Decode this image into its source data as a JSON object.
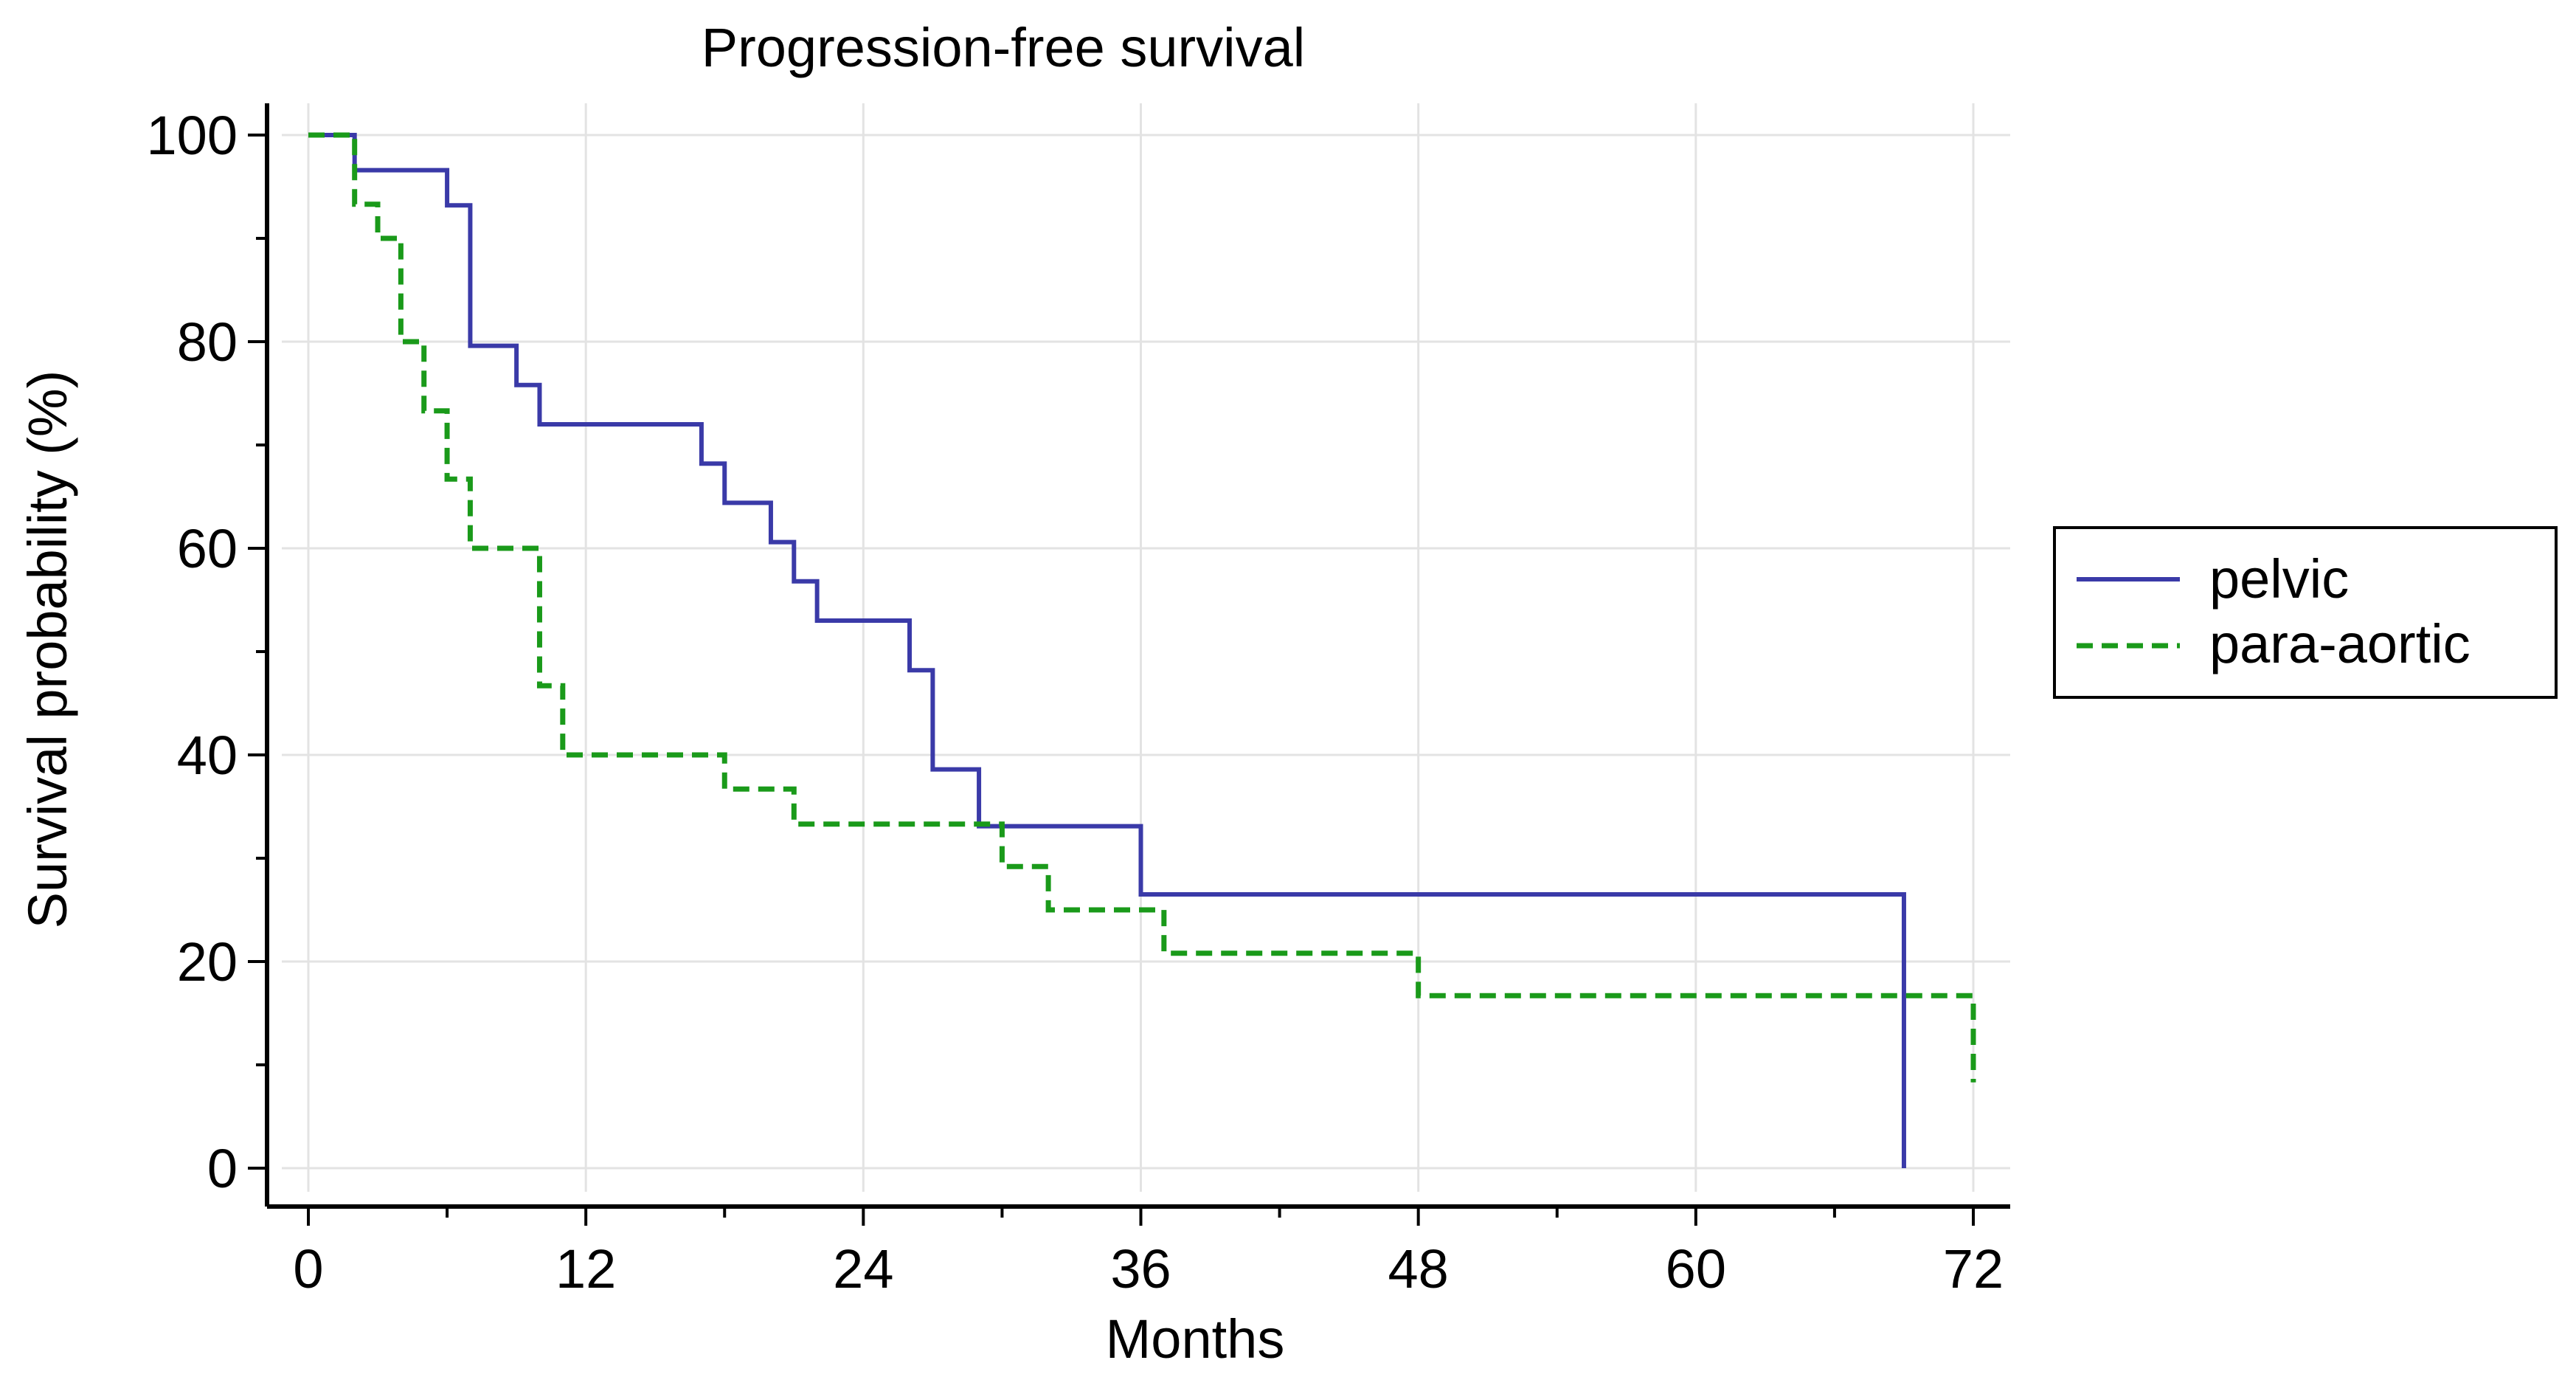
{
  "chart_data": {
    "type": "line",
    "step": true,
    "title": "Progression-free survival",
    "xlabel": "Months",
    "ylabel": "Survival probability (%)",
    "xlim": [
      0,
      72
    ],
    "ylim": [
      0,
      100
    ],
    "xticks": [
      0,
      12,
      24,
      36,
      48,
      60,
      72
    ],
    "yticks": [
      0,
      20,
      40,
      60,
      80,
      100
    ],
    "xtick_labels": [
      "0",
      "12",
      "24",
      "36",
      "48",
      "60",
      "72"
    ],
    "ytick_labels": [
      "0",
      "20",
      "40",
      "60",
      "80",
      "100"
    ],
    "grid": true,
    "legend_position": "right",
    "series": [
      {
        "name": "pelvic",
        "color": "#3a3aa8",
        "dash": "solid",
        "x": [
          0,
          2,
          6,
          7,
          9,
          10,
          17,
          18,
          20,
          21,
          22,
          26,
          27,
          29,
          36,
          69,
          69
        ],
        "y": [
          100,
          96.6,
          93.2,
          79.6,
          75.8,
          72.0,
          68.2,
          64.4,
          60.6,
          56.8,
          53.0,
          48.2,
          38.6,
          33.1,
          26.5,
          26.5,
          0
        ]
      },
      {
        "name": "para-aortic",
        "color": "#1a9a1a",
        "dash": "dashed",
        "x": [
          0,
          2,
          3,
          4,
          5,
          6,
          7,
          10,
          11,
          18,
          21,
          30,
          32,
          37,
          48,
          72,
          72
        ],
        "y": [
          100,
          93.3,
          90.0,
          80.0,
          73.3,
          66.7,
          60.0,
          46.7,
          40.0,
          36.7,
          33.3,
          29.2,
          25.0,
          20.8,
          16.7,
          16.7,
          8.3
        ]
      }
    ]
  }
}
